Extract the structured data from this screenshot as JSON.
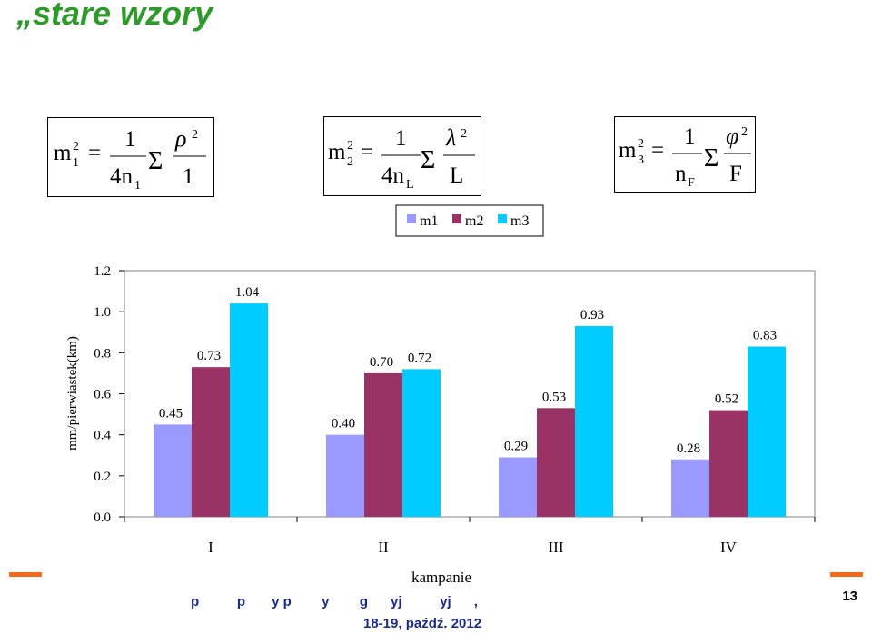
{
  "slide": {
    "title": "„stare wzory",
    "page_number": "13",
    "footer_partial": "p          p       y p        y        g      yj          yj      ,",
    "footer_date": "18-19, paźdź. 2012"
  },
  "formulas": [
    {
      "lhs": "m",
      "lhs_sub": "1",
      "lhs_sup": "2",
      "coef_num": "1",
      "coef_den": "4n",
      "coef_den_sub": "1",
      "sum": "Σ",
      "frac_num": "ρ",
      "frac_num_sup": "2",
      "frac_den": "1"
    },
    {
      "lhs": "m",
      "lhs_sub": "2",
      "lhs_sup": "2",
      "coef_num": "1",
      "coef_den": "4n",
      "coef_den_sub": "L",
      "sum": "Σ",
      "frac_num": "λ",
      "frac_num_sup": "2",
      "frac_den": "L"
    },
    {
      "lhs": "m",
      "lhs_sub": "3",
      "lhs_sup": "2",
      "coef_num": "1",
      "coef_den": "n",
      "coef_den_sub": "F",
      "sum": "Σ",
      "frac_num": "φ",
      "frac_num_sup": "2",
      "frac_den": "F"
    }
  ],
  "chart_data": {
    "type": "bar",
    "categories": [
      "I",
      "II",
      "III",
      "IV"
    ],
    "series": [
      {
        "name": "m1",
        "color": "#9999ff",
        "values": [
          0.45,
          0.4,
          0.29,
          0.28
        ],
        "labels": [
          "0.45",
          "0.40",
          "0.29",
          "0.28"
        ]
      },
      {
        "name": "m2",
        "color": "#993366",
        "values": [
          0.73,
          0.7,
          0.53,
          0.52
        ],
        "labels": [
          "0.73",
          "0.70",
          "0.53",
          "0.52"
        ]
      },
      {
        "name": "m3",
        "color": "#00ccff",
        "values": [
          1.04,
          0.72,
          0.93,
          0.83
        ],
        "labels": [
          "1.04",
          "0.72",
          "0.93",
          "0.83"
        ]
      }
    ],
    "xlabel": "kampanie",
    "ylabel": "mm/pierwiastek(km)",
    "ylim": [
      0,
      1.2
    ],
    "yticks": [
      "0.0",
      "0.2",
      "0.4",
      "0.6",
      "0.8",
      "1.0",
      "1.2"
    ],
    "legend_position": "top-center",
    "grid": false
  }
}
